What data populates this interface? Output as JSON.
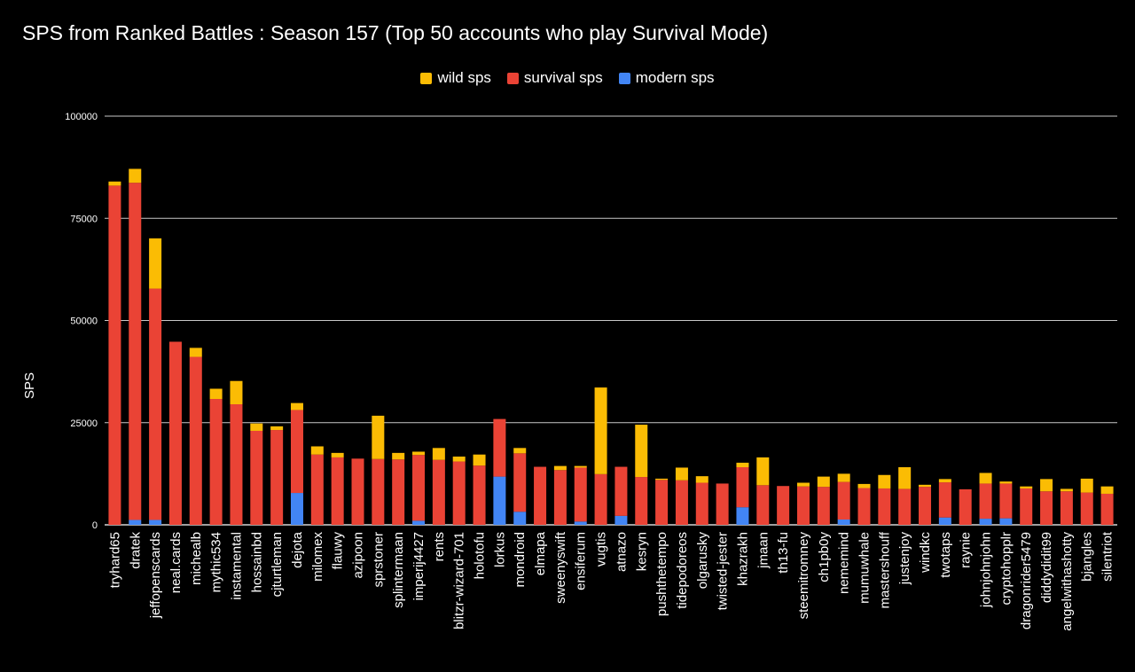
{
  "chart_data": {
    "type": "bar",
    "stacked": true,
    "title": "SPS from Ranked Battles : Season 157 (Top 50 accounts who play Survival Mode)",
    "xlabel": "",
    "ylabel": "SPS",
    "ylim": [
      0,
      100000
    ],
    "yticks": [
      0,
      25000,
      50000,
      75000,
      100000
    ],
    "grid": true,
    "legend_position": "top",
    "colors": {
      "wild": "#fbbc04",
      "survival": "#ea4335",
      "modern": "#4285f4"
    },
    "categories": [
      "tryhard65",
      "dratek",
      "jeffopenscards",
      "neal.cards",
      "michealb",
      "mythic534",
      "instamental",
      "hossainbd",
      "cjturtleman",
      "dejota",
      "milomex",
      "flauwy",
      "azipoon",
      "sprstoner",
      "splintermaan",
      "imperij4427",
      "rents",
      "blitzr-wizard-701",
      "holotofu",
      "lorkus",
      "mondroid",
      "elmapa",
      "sweenyswift",
      "ensiferum",
      "vugtis",
      "atnazo",
      "kesryn",
      "pushthetempo",
      "tidepodoreos",
      "olgarusky",
      "twisted-jester",
      "khazrakh",
      "jmaan",
      "th13-fu",
      "steemitromney",
      "ch1pb0y",
      "nememind",
      "mumuwhale",
      "mastershouff",
      "justenjoy",
      "windkc",
      "twotaps",
      "raynie",
      "johnjohnjohn",
      "cryptohopplr",
      "dragonrider5479",
      "diddydidit99",
      "angelwithashotty",
      "bjangles",
      "silentriot"
    ],
    "series": [
      {
        "name": "modern sps",
        "values": [
          0,
          1200,
          1200,
          0,
          0,
          0,
          0,
          0,
          0,
          7800,
          0,
          0,
          0,
          0,
          0,
          1000,
          0,
          0,
          0,
          11800,
          3200,
          0,
          0,
          800,
          0,
          2200,
          0,
          0,
          0,
          0,
          0,
          4300,
          0,
          0,
          0,
          0,
          1300,
          0,
          0,
          0,
          0,
          1800,
          0,
          1500,
          1600,
          0,
          0,
          0,
          0,
          0
        ]
      },
      {
        "name": "survival sps",
        "values": [
          83000,
          82500,
          56600,
          44800,
          41100,
          30800,
          29500,
          23000,
          23200,
          20300,
          17200,
          16500,
          16200,
          16100,
          16000,
          16100,
          15900,
          15500,
          14500,
          14100,
          14300,
          14200,
          13400,
          13200,
          12400,
          12000,
          11700,
          11000,
          10900,
          10300,
          10100,
          9800,
          9700,
          9500,
          9400,
          9300,
          9200,
          9000,
          8900,
          8800,
          9300,
          8600,
          8700,
          8600,
          8500,
          8900,
          8200,
          8200,
          7900,
          7600
        ]
      },
      {
        "name": "wild sps",
        "values": [
          1000,
          3400,
          12300,
          0,
          2200,
          2500,
          5700,
          1800,
          900,
          1700,
          2000,
          1100,
          0,
          10600,
          1600,
          800,
          2900,
          1200,
          2700,
          0,
          1300,
          0,
          1000,
          400,
          21200,
          0,
          12800,
          300,
          3100,
          1600,
          0,
          1100,
          6800,
          0,
          900,
          2500,
          2000,
          1000,
          3300,
          5300,
          500,
          800,
          0,
          2600,
          500,
          500,
          3000,
          600,
          3400,
          1800
        ]
      }
    ]
  },
  "legend": [
    {
      "label": "wild sps",
      "color": "#fbbc04"
    },
    {
      "label": "survival sps",
      "color": "#ea4335"
    },
    {
      "label": "modern sps",
      "color": "#4285f4"
    }
  ]
}
